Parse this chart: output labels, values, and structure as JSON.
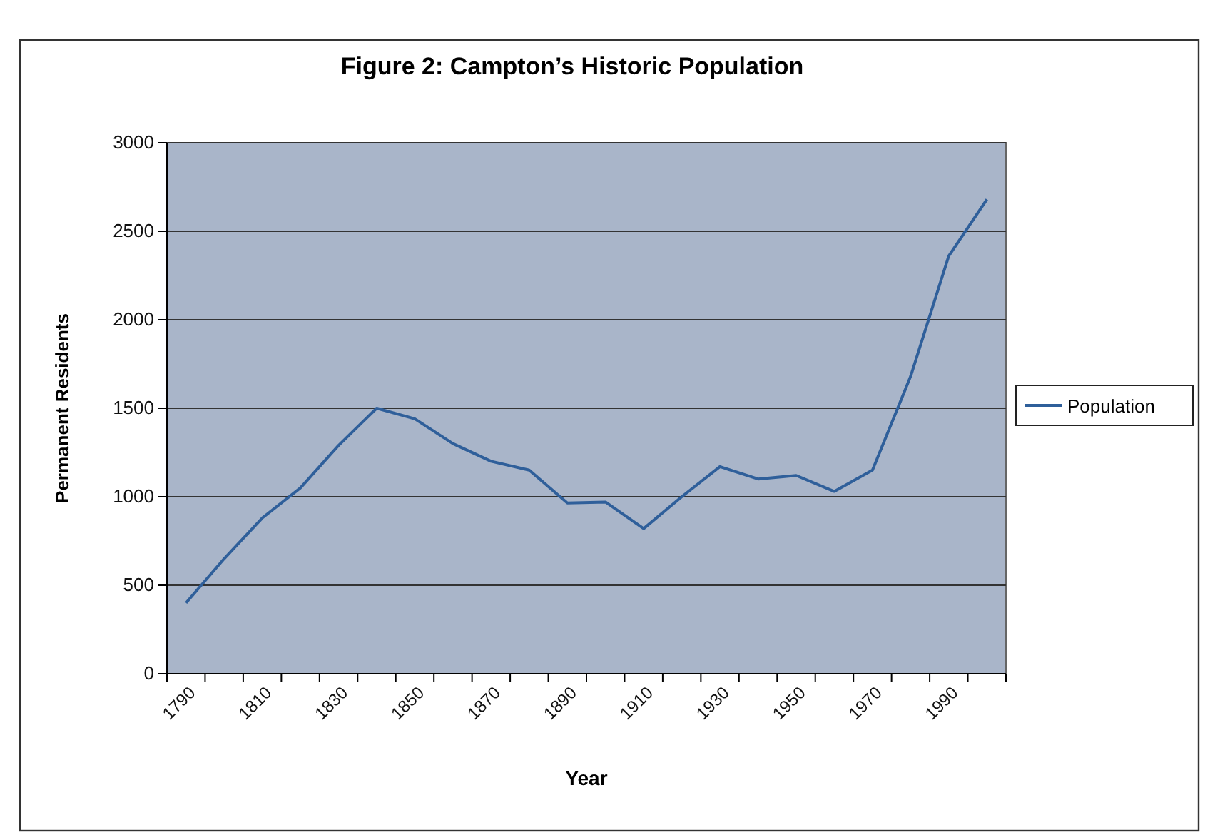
{
  "chart_data": {
    "type": "line",
    "title": "Figure 2: Campton’s Historic Population",
    "xlabel": "Year",
    "ylabel": "Permanent Residents",
    "categories": [
      "1790",
      null,
      "1810",
      null,
      "1830",
      null,
      "1850",
      null,
      "1870",
      null,
      "1890",
      null,
      "1910",
      null,
      "1930",
      null,
      "1950",
      null,
      "1970",
      null,
      "1990",
      null
    ],
    "series": [
      {
        "name": "Population",
        "color": "#2f5f9a",
        "values": [
          400,
          650,
          880,
          1050,
          1290,
          1500,
          1440,
          1300,
          1200,
          1150,
          965,
          970,
          820,
          1000,
          1170,
          1100,
          1120,
          1030,
          1150,
          1680,
          2360,
          2680
        ]
      }
    ],
    "ylim": [
      0,
      3000
    ],
    "yticks": [
      0,
      500,
      1000,
      1500,
      2000,
      2500,
      3000
    ],
    "grid": "y",
    "legend": "right",
    "marker": "none",
    "line_style": "solid"
  }
}
